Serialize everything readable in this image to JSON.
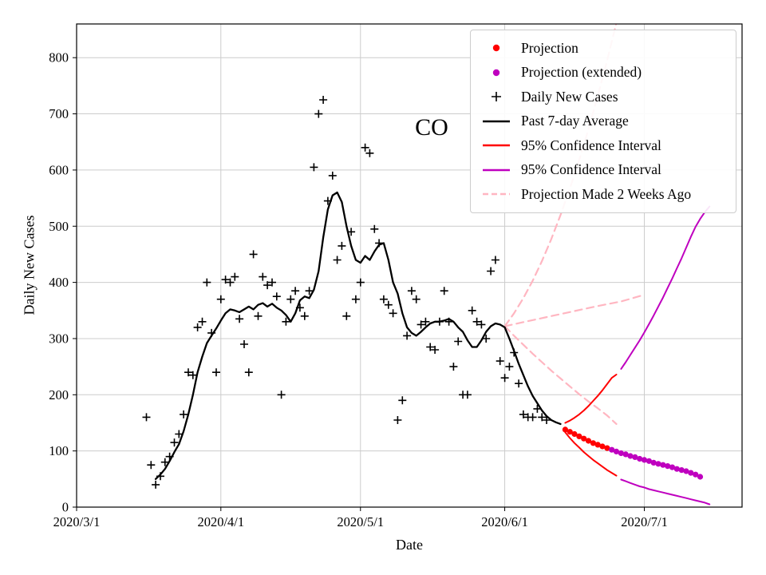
{
  "chart_data": {
    "type": "line",
    "title": "",
    "annotation": "CO",
    "xlabel": "Date",
    "ylabel": "Daily New Cases",
    "grid": true,
    "xlim": [
      "2020-03-01",
      "2020-07-22"
    ],
    "ylim": [
      0,
      860
    ],
    "x_ticks": [
      {
        "date": "2020-03-01",
        "label": "2020/3/1"
      },
      {
        "date": "2020-04-01",
        "label": "2020/4/1"
      },
      {
        "date": "2020-05-01",
        "label": "2020/5/1"
      },
      {
        "date": "2020-06-01",
        "label": "2020/6/1"
      },
      {
        "date": "2020-07-01",
        "label": "2020/7/1"
      }
    ],
    "y_ticks": [
      0,
      100,
      200,
      300,
      400,
      500,
      600,
      700,
      800
    ],
    "colors": {
      "black": "#000000",
      "red": "#ff0000",
      "magenta": "#bf00bf",
      "pink": "#ffb6c1",
      "grid": "#cccccc"
    },
    "legend": {
      "position": "upper right",
      "items": [
        {
          "label": "Projection",
          "marker": "dot",
          "color": "#ff0000"
        },
        {
          "label": "Projection (extended)",
          "marker": "dot",
          "color": "#bf00bf"
        },
        {
          "label": "Daily New Cases",
          "marker": "plus",
          "color": "#000000"
        },
        {
          "label": "Past 7-day Average",
          "marker": "line",
          "color": "#000000"
        },
        {
          "label": "95% Confidence Interval",
          "marker": "line",
          "color": "#ff0000"
        },
        {
          "label": "95% Confidence Interval",
          "marker": "line",
          "color": "#bf00bf"
        },
        {
          "label": "Projection Made 2 Weeks Ago",
          "marker": "dashed-line",
          "color": "#ffb6c1"
        }
      ]
    },
    "series": [
      {
        "id": "projection-2wk-ago-upper",
        "legend_label": "Projection Made 2 Weeks Ago",
        "style": "dashed",
        "color": "pink",
        "width": 2.2,
        "start_date": "2020-06-01",
        "step_days": 2,
        "values": [
          322,
          345,
          372,
          403,
          438,
          477,
          520,
          567,
          618,
          673,
          732,
          795,
          862
        ]
      },
      {
        "id": "projection-2wk-ago-median",
        "legend_label": "Projection Made 2 Weeks Ago",
        "style": "dashed",
        "color": "pink",
        "width": 2.2,
        "start_date": "2020-06-01",
        "step_days": 5,
        "values": [
          322,
          331,
          340,
          349,
          358,
          366,
          378
        ]
      },
      {
        "id": "projection-2wk-ago-lower",
        "legend_label": "Projection Made 2 Weeks Ago",
        "style": "dashed",
        "color": "pink",
        "width": 2.2,
        "start_date": "2020-06-01",
        "step_days": 2,
        "values": [
          322,
          305,
          289,
          273,
          258,
          243,
          229,
          215,
          201,
          188,
          176,
          163,
          148
        ]
      },
      {
        "id": "past-7day-average",
        "legend_label": "Past 7-day Average",
        "style": "line",
        "color": "black",
        "width": 2.3,
        "start_date": "2020-03-18",
        "step_days": 1,
        "values": [
          50,
          58,
          68,
          82,
          98,
          112,
          135,
          165,
          200,
          240,
          268,
          292,
          305,
          318,
          332,
          345,
          352,
          350,
          347,
          352,
          357,
          352,
          360,
          363,
          357,
          362,
          355,
          350,
          342,
          330,
          345,
          368,
          375,
          372,
          387,
          420,
          480,
          530,
          555,
          560,
          543,
          500,
          465,
          440,
          435,
          447,
          440,
          455,
          467,
          470,
          440,
          400,
          380,
          345,
          320,
          310,
          305,
          312,
          320,
          327,
          330,
          330,
          332,
          335,
          330,
          320,
          312,
          297,
          285,
          285,
          297,
          312,
          322,
          327,
          325,
          320,
          300,
          278,
          255,
          235,
          215,
          198,
          185,
          172,
          162,
          155,
          151,
          148
        ]
      },
      {
        "id": "daily-new-cases",
        "legend_label": "Daily New Cases",
        "style": "plus",
        "color": "black",
        "width": 1.6,
        "start_date": "2020-03-16",
        "step_days": 1,
        "values": [
          160,
          75,
          40,
          55,
          80,
          90,
          115,
          130,
          165,
          240,
          235,
          320,
          330,
          400,
          310,
          240,
          370,
          405,
          400,
          410,
          335,
          290,
          240,
          450,
          340,
          410,
          395,
          400,
          375,
          200,
          330,
          370,
          385,
          355,
          340,
          385,
          605,
          700,
          725,
          545,
          590,
          440,
          465,
          340,
          490,
          370,
          400,
          640,
          630,
          495,
          470,
          370,
          360,
          345,
          155,
          190,
          305,
          385,
          370,
          325,
          330,
          285,
          280,
          330,
          385,
          330,
          250,
          295,
          200,
          200,
          350,
          330,
          325,
          300,
          420,
          440,
          260,
          230,
          250,
          275,
          220,
          165,
          160,
          160,
          175,
          160,
          155
        ]
      },
      {
        "id": "ci-95-red-upper",
        "legend_label": "95% Confidence Interval",
        "style": "line",
        "color": "red",
        "width": 2,
        "start_date": "2020-06-14",
        "step_days": 1,
        "values": [
          150,
          154,
          159,
          165,
          172,
          180,
          189,
          198,
          208,
          219,
          230,
          236
        ]
      },
      {
        "id": "ci-95-red-lower",
        "legend_label": "95% Confidence Interval",
        "style": "line",
        "color": "red",
        "width": 2,
        "start_date": "2020-06-14",
        "step_days": 1,
        "values": [
          133,
          123,
          114,
          106,
          98,
          91,
          84,
          78,
          72,
          66,
          61,
          56
        ]
      },
      {
        "id": "ci-95-magenta-upper",
        "legend_label": "95% Confidence Interval",
        "style": "line",
        "color": "magenta",
        "width": 2,
        "start_date": "2020-06-26",
        "step_days": 1,
        "values": [
          246,
          258,
          271,
          284,
          297,
          311,
          326,
          341,
          357,
          373,
          390,
          407,
          425,
          443,
          462,
          481,
          499,
          513,
          525,
          535
        ]
      },
      {
        "id": "ci-95-magenta-lower",
        "legend_label": "95% Confidence Interval",
        "style": "line",
        "color": "magenta",
        "width": 2,
        "start_date": "2020-06-26",
        "step_days": 1,
        "values": [
          49,
          46,
          43,
          40,
          37,
          35,
          32,
          30,
          28,
          26,
          24,
          22,
          20,
          18,
          16,
          14,
          12,
          10,
          8,
          5
        ]
      },
      {
        "id": "projection",
        "legend_label": "Projection",
        "style": "dots",
        "color": "red",
        "width": 0,
        "start_date": "2020-06-14",
        "step_days": 1,
        "values": [
          138,
          134,
          130,
          126,
          122,
          118,
          114,
          111,
          108,
          105
        ]
      },
      {
        "id": "projection-extended",
        "legend_label": "Projection (extended)",
        "style": "dots",
        "color": "magenta",
        "width": 0,
        "start_date": "2020-06-24",
        "step_days": 1,
        "values": [
          102,
          99,
          96,
          94,
          91,
          89,
          86,
          84,
          82,
          79,
          77,
          75,
          73,
          71,
          68,
          66,
          64,
          61,
          58,
          54
        ]
      }
    ]
  }
}
